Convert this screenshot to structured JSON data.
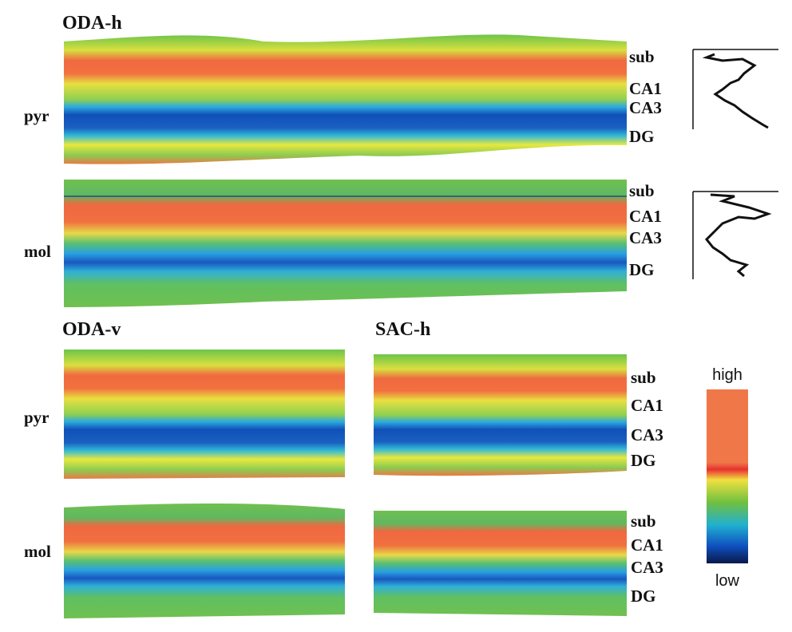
{
  "sections": [
    {
      "title": "ODA-h",
      "rows": [
        {
          "label": "pyr",
          "layers": [
            "sub",
            "CA1",
            "CA3",
            "DG"
          ]
        },
        {
          "label": "mol",
          "layers": [
            "sub",
            "CA1",
            "CA3",
            "DG"
          ]
        }
      ]
    },
    {
      "title": "ODA-v",
      "rows": [
        {
          "label": "pyr"
        },
        {
          "label": "mol"
        }
      ]
    },
    {
      "title": "SAC-h",
      "rows": [
        {
          "layers": [
            "sub",
            "CA1",
            "CA3",
            "DG"
          ]
        },
        {
          "layers": [
            "sub",
            "CA1",
            "CA3",
            "DG"
          ]
        }
      ]
    }
  ],
  "colorbar": {
    "high": "high",
    "low": "low"
  }
}
